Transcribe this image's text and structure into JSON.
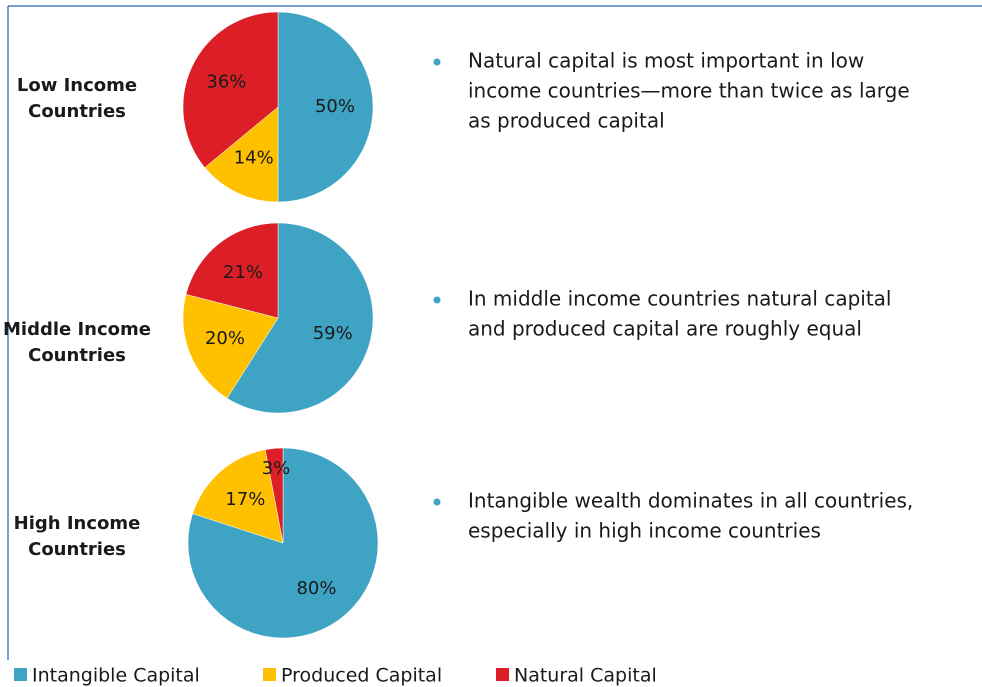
{
  "chart_data": [
    {
      "type": "pie",
      "title": "Low Income Countries",
      "categories": [
        "Intangible Capital",
        "Produced Capital",
        "Natural Capital"
      ],
      "values": [
        50,
        14,
        36
      ],
      "value_labels": [
        "50%",
        "14%",
        "36%"
      ],
      "colors": [
        "#3fa3c4",
        "#ffc000",
        "#dc1f26"
      ]
    },
    {
      "type": "pie",
      "title": "Middle Income Countries",
      "categories": [
        "Intangible Capital",
        "Produced Capital",
        "Natural Capital"
      ],
      "values": [
        59,
        20,
        21
      ],
      "value_labels": [
        "59%",
        "20%",
        "21%"
      ],
      "colors": [
        "#3fa3c4",
        "#ffc000",
        "#dc1f26"
      ]
    },
    {
      "type": "pie",
      "title": "High Income Countries",
      "categories": [
        "Intangible Capital",
        "Produced Capital",
        "Natural Capital"
      ],
      "values": [
        80,
        17,
        3
      ],
      "value_labels": [
        "80%",
        "17%",
        "3%"
      ],
      "colors": [
        "#3fa3c4",
        "#ffc000",
        "#dc1f26"
      ]
    }
  ],
  "bullets": [
    [
      "Natural capital is most important in low",
      "income countries—more than twice as large",
      "as produced capital"
    ],
    [
      "In middle income countries natural capital",
      "and produced capital are roughly equal"
    ],
    [
      "Intangible wealth dominates in all countries,",
      "especially in high income countries"
    ]
  ]
}
